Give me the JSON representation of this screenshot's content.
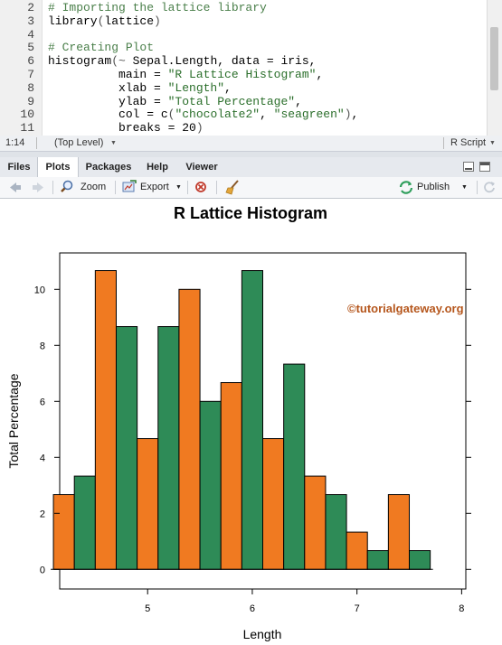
{
  "editor": {
    "lines": [
      {
        "num": "2",
        "tokens": [
          {
            "t": "# Importing the lattice library",
            "c": "comment"
          }
        ]
      },
      {
        "num": "3",
        "tokens": [
          {
            "t": "library",
            "c": ""
          },
          {
            "t": "(",
            "c": "punct"
          },
          {
            "t": "lattice",
            "c": ""
          },
          {
            "t": ")",
            "c": "punct"
          }
        ]
      },
      {
        "num": "4",
        "tokens": []
      },
      {
        "num": "5",
        "tokens": [
          {
            "t": "# Creating Plot",
            "c": "comment"
          }
        ]
      },
      {
        "num": "6",
        "tokens": [
          {
            "t": "histogram",
            "c": ""
          },
          {
            "t": "(~ ",
            "c": "punct"
          },
          {
            "t": "Sepal.Length, data = iris,",
            "c": ""
          }
        ]
      },
      {
        "num": "7",
        "tokens": [
          {
            "t": "          main = ",
            "c": ""
          },
          {
            "t": "\"R Lattice Histogram\"",
            "c": "string"
          },
          {
            "t": ",",
            "c": ""
          }
        ]
      },
      {
        "num": "8",
        "tokens": [
          {
            "t": "          xlab = ",
            "c": ""
          },
          {
            "t": "\"Length\"",
            "c": "string"
          },
          {
            "t": ",",
            "c": ""
          }
        ]
      },
      {
        "num": "9",
        "tokens": [
          {
            "t": "          ylab = ",
            "c": ""
          },
          {
            "t": "\"Total Percentage\"",
            "c": "string"
          },
          {
            "t": ",",
            "c": ""
          }
        ]
      },
      {
        "num": "10",
        "tokens": [
          {
            "t": "          col = c",
            "c": ""
          },
          {
            "t": "(",
            "c": "punct"
          },
          {
            "t": "\"chocolate2\"",
            "c": "string"
          },
          {
            "t": ", ",
            "c": ""
          },
          {
            "t": "\"seagreen\"",
            "c": "string"
          },
          {
            "t": ")",
            "c": "punct"
          },
          {
            "t": ",",
            "c": ""
          }
        ]
      },
      {
        "num": "11",
        "tokens": [
          {
            "t": "          breaks = 20",
            "c": ""
          },
          {
            "t": ")",
            "c": "punct"
          }
        ]
      }
    ]
  },
  "status": {
    "position": "1:14",
    "scope": "(Top Level)",
    "filetype": "R Script"
  },
  "tabs": [
    {
      "label": "Files",
      "active": false
    },
    {
      "label": "Plots",
      "active": true
    },
    {
      "label": "Packages",
      "active": false
    },
    {
      "label": "Help",
      "active": false
    },
    {
      "label": "Viewer",
      "active": false
    }
  ],
  "toolbar": {
    "zoom_label": "Zoom",
    "export_label": "Export",
    "publish_label": "Publish",
    "icons": [
      "back-arrow-icon",
      "forward-arrow-icon",
      "zoom-magnifier-icon",
      "export-icon",
      "remove-plot-icon",
      "broom-icon",
      "publish-icon",
      "refresh-icon"
    ]
  },
  "watermark": "©tutorialgateway.org",
  "colors": {
    "bar_orange": "#f07a21",
    "bar_green": "#2e8b57",
    "watermark": "#b5561c"
  },
  "chart_data": {
    "type": "bar",
    "title": "R Lattice Histogram",
    "xlabel": "Length",
    "ylabel": "Total Percentage",
    "xlim": [
      4.16,
      8.04
    ],
    "ylim": [
      -0.7,
      11.3
    ],
    "xticks": [
      5,
      6,
      7,
      8
    ],
    "yticks": [
      0,
      2,
      4,
      6,
      8,
      10
    ],
    "bin_start": 4.1,
    "bin_width": 0.2,
    "values": [
      2.67,
      3.33,
      10.67,
      8.67,
      4.67,
      8.67,
      10.0,
      6.0,
      6.67,
      10.67,
      4.67,
      7.33,
      3.33,
      2.67,
      1.33,
      0.67,
      2.67,
      0.67
    ],
    "grid": false
  }
}
